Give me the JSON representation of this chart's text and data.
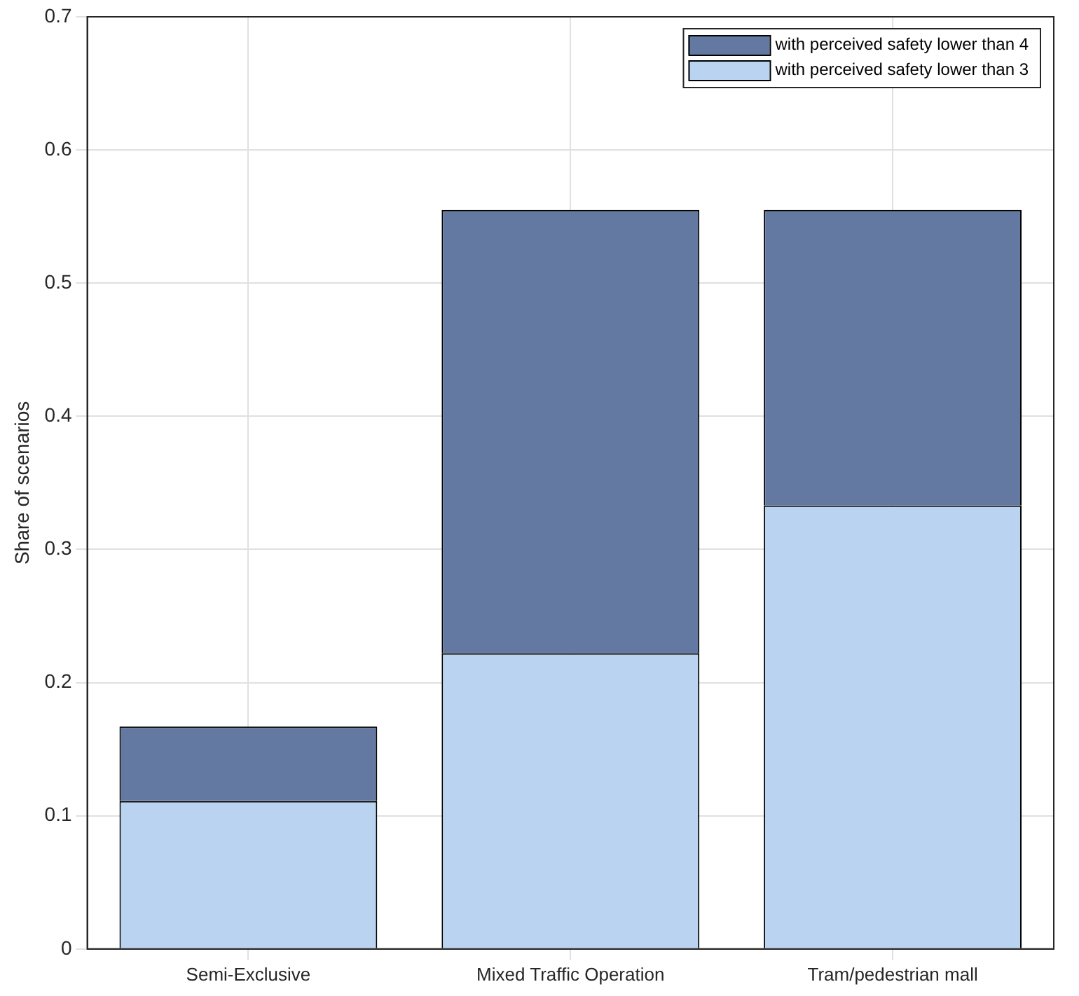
{
  "chart_data": {
    "type": "bar",
    "stacked": true,
    "ylabel": "Share of scenarios",
    "categories": [
      "Semi-Exclusive",
      "Mixed Traffic Operation",
      "Tram/pedestrian mall"
    ],
    "series": [
      {
        "name": "with perceived safety lower than 3",
        "color": "#b9d3f0",
        "values": [
          0.111,
          0.222,
          0.333
        ]
      },
      {
        "name": "with perceived safety lower than 4",
        "color": "#6479a1",
        "values": [
          0.056,
          0.333,
          0.222
        ]
      }
    ],
    "ylim": [
      0,
      0.7
    ],
    "yticks": [
      0,
      0.1,
      0.2,
      0.3,
      0.4,
      0.5,
      0.6,
      0.7
    ],
    "grid": true,
    "legend": "top right"
  }
}
